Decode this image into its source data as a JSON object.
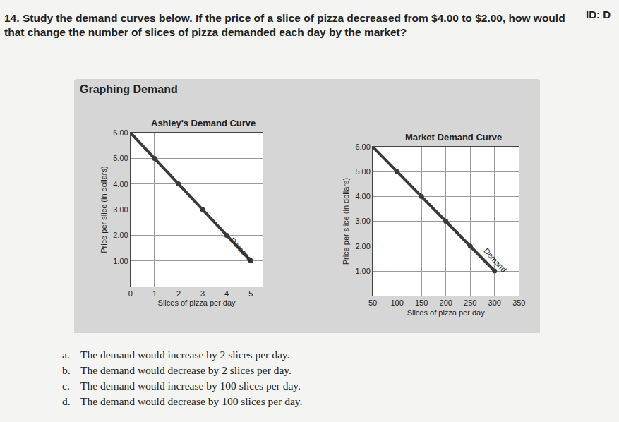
{
  "id": "ID: D",
  "question": {
    "number": "14.",
    "text": "Study the demand curves below. If the price of a slice of pizza decreased from $4.00 to $2.00, how would that change the number of slices of pizza demanded each day by the market?"
  },
  "heading": "Graphing Demand",
  "chart_data": [
    {
      "type": "line",
      "title": "Ashley's Demand Curve",
      "x": [
        0,
        1,
        2,
        3,
        4,
        5
      ],
      "values": [
        6,
        5,
        4,
        3,
        2,
        1
      ],
      "xlabel": "Slices of pizza per day",
      "ylabel": "Price per slice (in dollars)",
      "xlim": [
        0,
        5.5
      ],
      "ylim": [
        0,
        6
      ],
      "xticks": [
        0,
        1,
        2,
        3,
        4,
        5
      ],
      "yticks": [
        {
          "value": 1,
          "label": "1.00"
        },
        {
          "value": 2,
          "label": "2.00"
        },
        {
          "value": 3,
          "label": "3.00"
        },
        {
          "value": 4,
          "label": "4.00"
        },
        {
          "value": 5,
          "label": "5.00"
        },
        {
          "value": 6,
          "label": "6.00"
        }
      ],
      "grid": true,
      "color": "#3a3a3a",
      "marker": "circle",
      "annotation": "Demand"
    },
    {
      "type": "line",
      "title": "Market Demand Curve",
      "x": [
        50,
        100,
        150,
        200,
        250,
        300
      ],
      "values": [
        6,
        5,
        4,
        3,
        2,
        1
      ],
      "xlabel": "Slices of pizza per day",
      "ylabel": "Price per slice (in dollars)",
      "xlim": [
        50,
        350
      ],
      "ylim": [
        0,
        6
      ],
      "xticks": [
        50,
        100,
        150,
        200,
        250,
        300,
        350
      ],
      "yticks": [
        {
          "value": 1,
          "label": "1.00"
        },
        {
          "value": 2,
          "label": "2.00"
        },
        {
          "value": 3,
          "label": "3.00"
        },
        {
          "value": 4,
          "label": "4.00"
        },
        {
          "value": 5,
          "label": "5.00"
        },
        {
          "value": 6,
          "label": "6.00"
        }
      ],
      "grid": true,
      "color": "#3a3a3a",
      "marker": "circle",
      "annotation": "Demand"
    }
  ],
  "options": [
    {
      "letter": "a.",
      "text": "The demand would increase by 2 slices per day."
    },
    {
      "letter": "b.",
      "text": "The demand would decrease by 2 slices per day."
    },
    {
      "letter": "c.",
      "text": "The demand would increase by 100 slices per day."
    },
    {
      "letter": "d.",
      "text": "The demand would decrease by 100 slices per day."
    }
  ]
}
